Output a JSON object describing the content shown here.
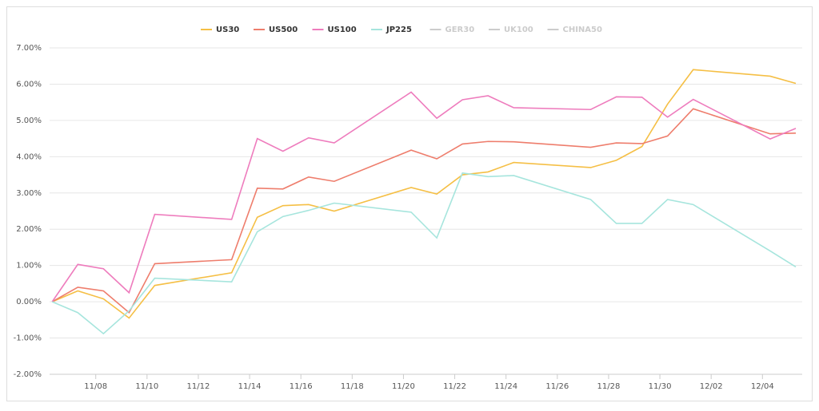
{
  "chart_data": {
    "type": "line",
    "x": [
      6.3,
      7.3,
      8.3,
      9.3,
      10.3,
      13.3,
      14.3,
      15.3,
      16.3,
      17.3,
      20.3,
      21.3,
      22.3,
      23.3,
      24.3,
      27.3,
      28.3,
      29.3,
      30.3,
      31.3,
      34.3,
      35.3
    ],
    "series": [
      {
        "name": "US30",
        "color": "#f5bf45",
        "visible": true,
        "values": [
          0,
          0.3,
          0.08,
          -0.45,
          0.45,
          0.8,
          2.33,
          2.65,
          2.68,
          2.5,
          3.15,
          2.97,
          3.5,
          3.58,
          3.84,
          3.7,
          3.9,
          4.28,
          5.45,
          6.4,
          6.22,
          6.02
        ]
      },
      {
        "name": "US500",
        "color": "#ee7d6c",
        "visible": true,
        "values": [
          0,
          0.4,
          0.3,
          -0.3,
          1.05,
          1.16,
          3.13,
          3.11,
          3.44,
          3.32,
          4.18,
          3.94,
          4.35,
          4.42,
          4.41,
          4.26,
          4.38,
          4.36,
          4.57,
          5.32,
          4.63,
          4.65
        ]
      },
      {
        "name": "US100",
        "color": "#ee7cbd",
        "visible": true,
        "values": [
          0,
          1.03,
          0.91,
          0.25,
          2.41,
          2.27,
          4.5,
          4.15,
          4.52,
          4.38,
          5.78,
          5.06,
          5.57,
          5.68,
          5.35,
          5.3,
          5.65,
          5.64,
          5.09,
          5.58,
          4.49,
          4.78
        ]
      },
      {
        "name": "JP225",
        "color": "#a6e5dd",
        "visible": true,
        "values": [
          0,
          -0.3,
          -0.88,
          -0.25,
          0.65,
          0.55,
          1.93,
          2.35,
          2.52,
          2.72,
          2.47,
          1.76,
          3.55,
          3.45,
          3.48,
          2.82,
          2.16,
          2.16,
          2.82,
          2.68,
          1.4,
          0.96
        ]
      },
      {
        "name": "GER30",
        "color": "#cccccc",
        "visible": false
      },
      {
        "name": "UK100",
        "color": "#cccccc",
        "visible": false
      },
      {
        "name": "CHINA50",
        "color": "#cccccc",
        "visible": false
      }
    ],
    "xlim": [
      6.2,
      35.55
    ],
    "xticks": [
      {
        "value": 8,
        "label": "11/08"
      },
      {
        "value": 10,
        "label": "11/10"
      },
      {
        "value": 12,
        "label": "11/12"
      },
      {
        "value": 14,
        "label": "11/14"
      },
      {
        "value": 16,
        "label": "11/16"
      },
      {
        "value": 18,
        "label": "11/18"
      },
      {
        "value": 20,
        "label": "11/20"
      },
      {
        "value": 22,
        "label": "11/22"
      },
      {
        "value": 24,
        "label": "11/24"
      },
      {
        "value": 26,
        "label": "11/26"
      },
      {
        "value": 28,
        "label": "11/28"
      },
      {
        "value": 30,
        "label": "11/30"
      },
      {
        "value": 32,
        "label": "12/02"
      },
      {
        "value": 34,
        "label": "12/04"
      }
    ],
    "ylim": [
      -2,
      7
    ],
    "yticks": [
      {
        "value": -2,
        "label": "-2.00%"
      },
      {
        "value": -1,
        "label": "-1.00%"
      },
      {
        "value": 0,
        "label": "0.00%"
      },
      {
        "value": 1,
        "label": "1.00%"
      },
      {
        "value": 2,
        "label": "2.00%"
      },
      {
        "value": 3,
        "label": "3.00%"
      },
      {
        "value": 4,
        "label": "4.00%"
      },
      {
        "value": 5,
        "label": "5.00%"
      },
      {
        "value": 6,
        "label": "6.00%"
      },
      {
        "value": 7,
        "label": "7.00%"
      }
    ],
    "grid": true,
    "legend": "top"
  }
}
